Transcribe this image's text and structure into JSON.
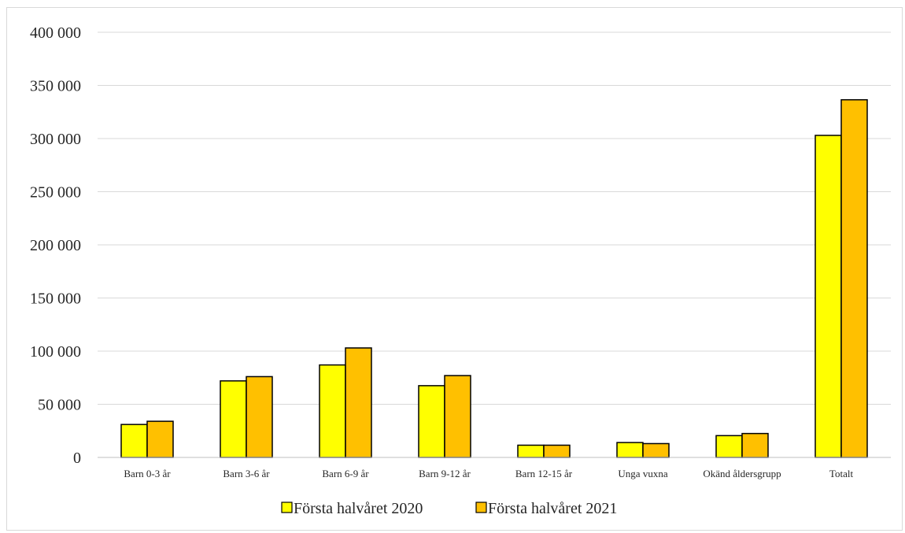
{
  "chart_data": {
    "type": "bar",
    "title": "",
    "xlabel": "",
    "ylabel": "",
    "ylim": [
      0,
      400000
    ],
    "yticks": [
      0,
      50000,
      100000,
      150000,
      200000,
      250000,
      300000,
      350000,
      400000
    ],
    "ytick_labels": [
      "0",
      "50 000",
      "100 000",
      "150 000",
      "200 000",
      "250 000",
      "300 000",
      "350 000",
      "400 000"
    ],
    "grid": true,
    "legend_position": "bottom",
    "categories": [
      "Barn 0-3 år",
      "Barn 3-6 år",
      "Barn 6-9 år",
      "Barn 9-12 år",
      "Barn 12-15 år",
      "Unga vuxna",
      "Okänd åldersgrupp",
      "Totalt"
    ],
    "series": [
      {
        "name": "Första halvåret 2020",
        "color": "#ffff00",
        "values": [
          31000,
          72000,
          87000,
          67500,
          11500,
          14000,
          20500,
          303000
        ]
      },
      {
        "name": "Första halvåret 2021",
        "color": "#ffc000",
        "values": [
          34000,
          76000,
          103000,
          77000,
          11500,
          13000,
          22500,
          336500
        ]
      }
    ]
  }
}
